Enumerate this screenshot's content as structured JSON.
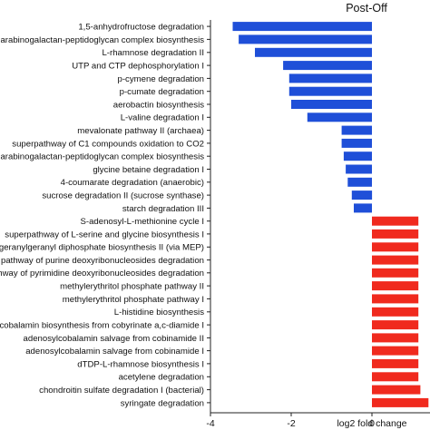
{
  "chart_data": {
    "type": "bar",
    "orientation": "horizontal",
    "title": "Post-Off",
    "xlabel": "log2 fold change",
    "ylabel": "",
    "xlim": [
      -4,
      1.5
    ],
    "xticks": [
      -4,
      -2,
      0
    ],
    "grid": false,
    "colors": {
      "negative": "#1f4fd8",
      "positive": "#f02a1e"
    },
    "categories": [
      "1,5-anhydrofructose degradation",
      "arabinogalactan-peptidoglycan complex biosynthesis",
      "L-rhamnose degradation II",
      "UTP and CTP dephosphorylation I",
      "p-cymene degradation",
      "p-cumate degradation",
      "aerobactin biosynthesis",
      "L-valine degradation I",
      "mevalonate pathway II (archaea)",
      "superpathway of C1 compounds oxidation to CO2",
      "arabinogalactan-peptidoglycan complex biosynthesis",
      "glycine betaine degradation I",
      "4-coumarate degradation (anaerobic)",
      "sucrose degradation II (sucrose synthase)",
      "starch degradation III",
      "S-adenosyl-L-methionine cycle I",
      "superpathway of L-serine and glycine biosynthesis I",
      "geranylgeranyl diphosphate biosynthesis II (via MEP)",
      "pathway of purine deoxyribonucleosides degradation",
      "pathway of pyrimidine deoxyribonucleosides degradation",
      "methylerythritol phosphate pathway II",
      "methylerythritol phosphate pathway I",
      "L-histidine biosynthesis",
      "cobalamin biosynthesis from cobyrinate a,c-diamide I",
      "adenosylcobalamin salvage from cobinamide II",
      "adenosylcobalamin salvage from cobinamide I",
      "dTDP-L-rhamnose biosynthesis I",
      "acetylene degradation",
      "chondroitin sulfate degradation I (bacterial)",
      "syringate degradation"
    ],
    "values": [
      -3.45,
      -3.3,
      -2.9,
      -2.2,
      -2.05,
      -2.05,
      -2.0,
      -1.6,
      -0.75,
      -0.75,
      -0.7,
      -0.65,
      -0.6,
      -0.5,
      -0.45,
      1.15,
      1.15,
      1.15,
      1.15,
      1.15,
      1.15,
      1.15,
      1.15,
      1.15,
      1.15,
      1.15,
      1.15,
      1.15,
      1.2,
      1.4
    ]
  }
}
